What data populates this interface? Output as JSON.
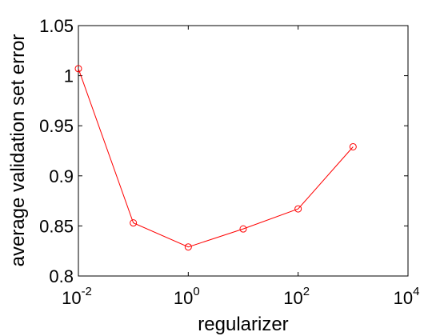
{
  "chart_data": {
    "type": "line",
    "xlabel": "regularizer",
    "ylabel": "average validation set error",
    "x_scale": "log",
    "xlim": [
      0.01,
      10000
    ],
    "ylim": [
      0.8,
      1.05
    ],
    "x_ticks": [
      {
        "value": 0.01,
        "base": "10",
        "exp": "-2"
      },
      {
        "value": 1,
        "base": "10",
        "exp": "0"
      },
      {
        "value": 100,
        "base": "10",
        "exp": "2"
      },
      {
        "value": 10000,
        "base": "10",
        "exp": "4"
      }
    ],
    "y_ticks": [
      {
        "value": 0.8,
        "label": "0.8"
      },
      {
        "value": 0.85,
        "label": "0.85"
      },
      {
        "value": 0.9,
        "label": "0.9"
      },
      {
        "value": 0.95,
        "label": "0.95"
      },
      {
        "value": 1.0,
        "label": "1"
      },
      {
        "value": 1.05,
        "label": "1.05"
      }
    ],
    "grid": false,
    "series": [
      {
        "color": "#ff0000",
        "marker": "circle",
        "x": [
          0.01,
          0.1,
          1,
          10,
          100,
          1000
        ],
        "y": [
          1.007,
          0.853,
          0.829,
          0.847,
          0.867,
          0.929
        ]
      }
    ]
  }
}
